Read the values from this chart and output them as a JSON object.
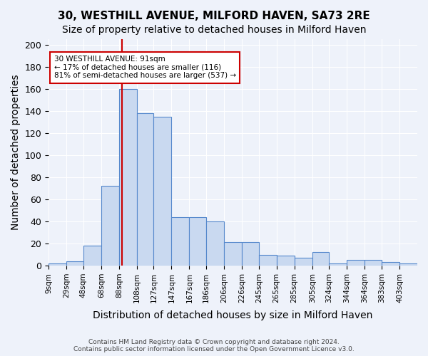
{
  "title": "30, WESTHILL AVENUE, MILFORD HAVEN, SA73 2RE",
  "subtitle": "Size of property relative to detached houses in Milford Haven",
  "xlabel": "Distribution of detached houses by size in Milford Haven",
  "ylabel": "Number of detached properties",
  "bar_values": [
    2,
    4,
    18,
    72,
    160,
    138,
    135,
    44,
    44,
    40,
    21,
    21,
    10,
    9,
    7,
    12,
    2,
    5,
    5,
    3,
    2
  ],
  "bin_labels": [
    "9sqm",
    "29sqm",
    "48sqm",
    "68sqm",
    "88sqm",
    "108sqm",
    "127sqm",
    "147sqm",
    "167sqm",
    "186sqm",
    "206sqm",
    "226sqm",
    "245sqm",
    "265sqm",
    "285sqm",
    "305sqm",
    "324sqm",
    "344sqm",
    "364sqm",
    "383sqm",
    "403sqm"
  ],
  "bar_color": "#c9d9f0",
  "bar_edge_color": "#5588cc",
  "red_line_x": 91,
  "bin_edges": [
    9,
    29,
    48,
    68,
    88,
    108,
    127,
    147,
    167,
    186,
    206,
    226,
    245,
    265,
    285,
    305,
    324,
    344,
    364,
    383,
    403,
    423
  ],
  "annotation_text": "30 WESTHILL AVENUE: 91sqm\n← 17% of detached houses are smaller (116)\n81% of semi-detached houses are larger (537) →",
  "annotation_box_color": "#ffffff",
  "annotation_box_edge": "#cc0000",
  "vline_color": "#cc0000",
  "footer_text": "Contains HM Land Registry data © Crown copyright and database right 2024.\nContains public sector information licensed under the Open Government Licence v3.0.",
  "ylim": [
    0,
    205
  ],
  "background_color": "#eef2fa",
  "grid_color": "#ffffff",
  "tick_label_fontsize": 7.5,
  "ylabel_fontsize": 10,
  "xlabel_fontsize": 10,
  "title_fontsize": 11,
  "subtitle_fontsize": 10
}
